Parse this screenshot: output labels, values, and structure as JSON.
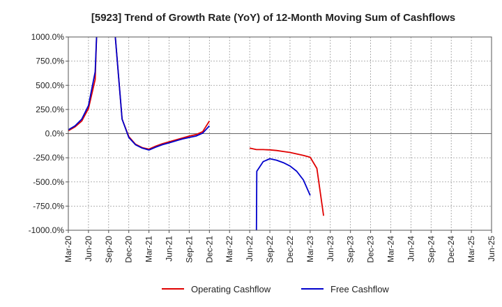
{
  "chart_data": {
    "type": "line",
    "title": "[5923]  Trend of Growth Rate (YoY) of 12-Month Moving Sum of Cashflows",
    "xlabel": "",
    "ylabel": "",
    "ylim": [
      -1000,
      1000
    ],
    "grid": true,
    "legend_position": "bottom",
    "y_ticks": [
      "1000.0%",
      "750.0%",
      "500.0%",
      "250.0%",
      "0.0%",
      "-250.0%",
      "-500.0%",
      "-750.0%",
      "-1000.0%"
    ],
    "y_tick_values": [
      1000,
      750,
      500,
      250,
      0,
      -250,
      -500,
      -750,
      -1000
    ],
    "x_ticks": [
      "Mar-20",
      "Jun-20",
      "Sep-20",
      "Dec-20",
      "Mar-21",
      "Jun-21",
      "Sep-21",
      "Dec-21",
      "Mar-22",
      "Jun-22",
      "Sep-22",
      "Dec-22",
      "Mar-23",
      "Jun-23",
      "Sep-23",
      "Dec-23",
      "Mar-24",
      "Jun-24",
      "Sep-24",
      "Dec-24",
      "Mar-25",
      "Jun-25"
    ],
    "x_tick_months": [
      0,
      3,
      6,
      9,
      12,
      15,
      18,
      21,
      24,
      27,
      30,
      33,
      36,
      39,
      42,
      45,
      48,
      51,
      54,
      57,
      60,
      63
    ],
    "series": [
      {
        "name": "Operating Cashflow",
        "color": "#e00000",
        "segments": [
          [
            [
              0,
              30
            ],
            [
              1,
              70
            ],
            [
              2,
              130
            ],
            [
              3,
              260
            ],
            [
              4,
              560
            ],
            [
              4.2,
              1000
            ]
          ],
          [
            [
              7,
              1000
            ],
            [
              8,
              150
            ],
            [
              9,
              -30
            ],
            [
              10,
              -110
            ],
            [
              11,
              -145
            ],
            [
              12,
              -160
            ],
            [
              13,
              -130
            ],
            [
              14,
              -105
            ],
            [
              15,
              -85
            ],
            [
              16,
              -65
            ],
            [
              17,
              -45
            ],
            [
              18,
              -25
            ],
            [
              19,
              -10
            ],
            [
              20,
              20
            ],
            [
              21,
              130
            ]
          ],
          [
            [
              27,
              -150
            ],
            [
              28,
              -165
            ],
            [
              29,
              -165
            ],
            [
              30,
              -168
            ],
            [
              31,
              -175
            ],
            [
              32,
              -185
            ],
            [
              33,
              -195
            ],
            [
              34,
              -210
            ],
            [
              35,
              -225
            ],
            [
              36,
              -245
            ],
            [
              37,
              -360
            ],
            [
              38,
              -850
            ]
          ]
        ]
      },
      {
        "name": "Free Cashflow",
        "color": "#0000cc",
        "segments": [
          [
            [
              0,
              40
            ],
            [
              1,
              80
            ],
            [
              2,
              150
            ],
            [
              3,
              290
            ],
            [
              4,
              640
            ],
            [
              4.2,
              1000
            ]
          ],
          [
            [
              7,
              1000
            ],
            [
              8,
              150
            ],
            [
              9,
              -40
            ],
            [
              10,
              -115
            ],
            [
              11,
              -150
            ],
            [
              12,
              -170
            ],
            [
              13,
              -140
            ],
            [
              14,
              -115
            ],
            [
              15,
              -95
            ],
            [
              16,
              -75
            ],
            [
              17,
              -55
            ],
            [
              18,
              -40
            ],
            [
              19,
              -25
            ],
            [
              20,
              5
            ],
            [
              21,
              80
            ]
          ],
          [
            [
              28,
              -1000
            ],
            [
              28.05,
              -390
            ],
            [
              29,
              -290
            ],
            [
              30,
              -260
            ],
            [
              31,
              -275
            ],
            [
              32,
              -300
            ],
            [
              33,
              -335
            ],
            [
              34,
              -390
            ],
            [
              35,
              -480
            ],
            [
              36,
              -640
            ]
          ]
        ]
      }
    ]
  }
}
